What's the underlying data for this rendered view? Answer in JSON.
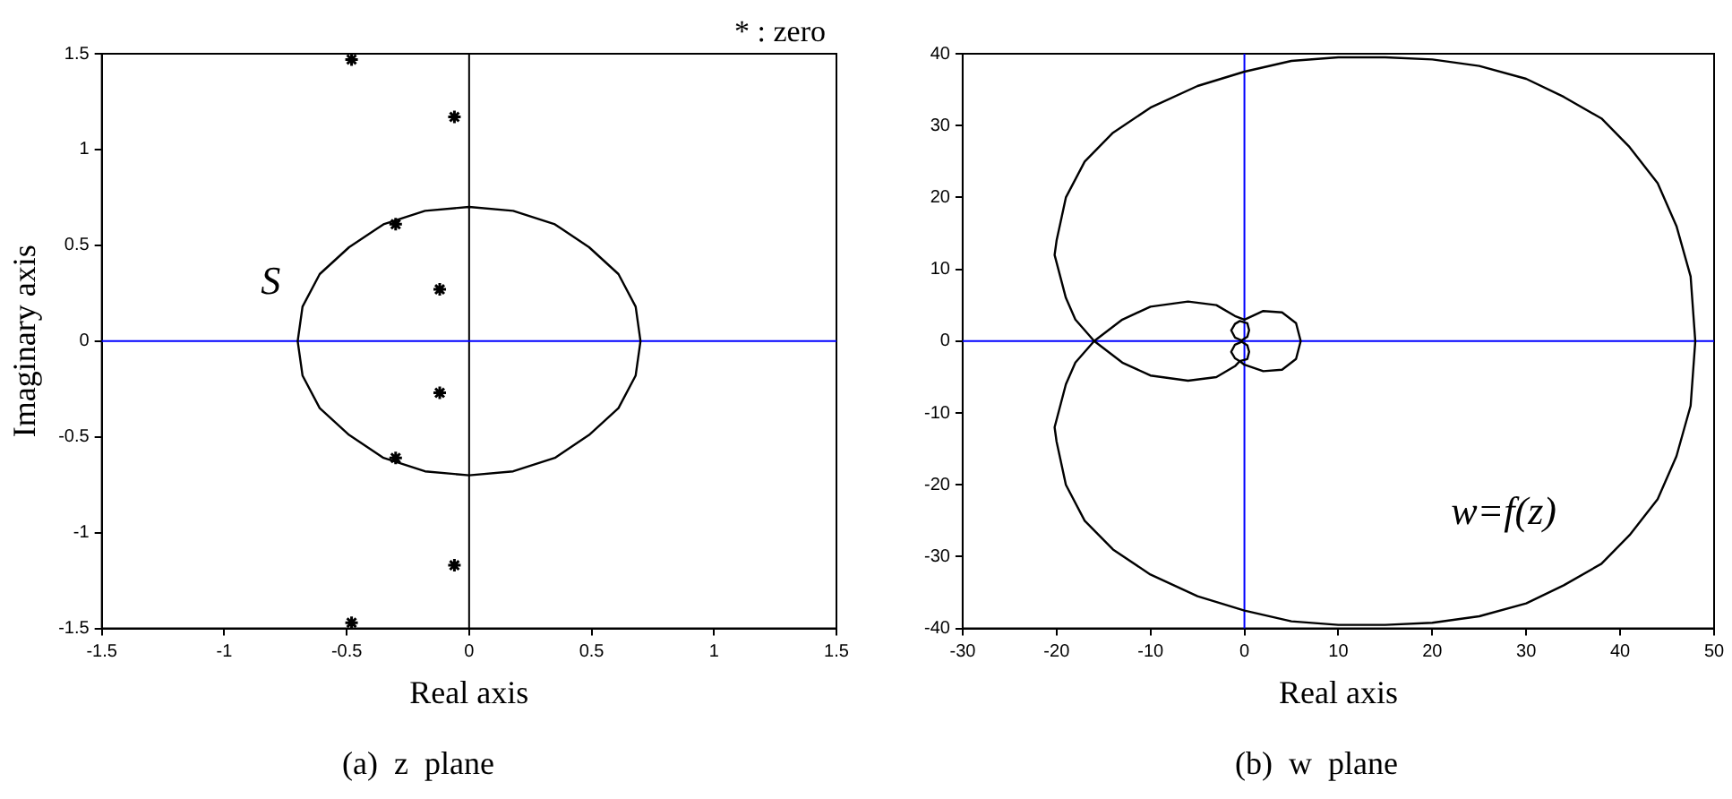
{
  "chart_data": [
    {
      "type": "scatter",
      "title": "(a)  z  plane",
      "xlabel": "Real axis",
      "ylabel": "Imaginary axis",
      "xlim": [
        -1.5,
        1.5
      ],
      "ylim": [
        -1.5,
        1.5
      ],
      "xticks": [
        -1.5,
        -1,
        -0.5,
        0,
        0.5,
        1,
        1.5
      ],
      "yticks": [
        -1.5,
        -1,
        -0.5,
        0,
        0.5,
        1,
        1.5
      ],
      "grid": false,
      "legend": false,
      "series": [
        {
          "marker": "cross",
          "color": "#000000",
          "x": [
            -0.48,
            -0.06,
            -0.3,
            -0.12,
            -0.12,
            -0.3,
            -0.06,
            -0.48
          ],
          "values": [
            1.47,
            1.17,
            0.61,
            0.27,
            -0.27,
            -0.61,
            -1.17,
            -1.47
          ]
        }
      ],
      "ref_lines": [
        {
          "axis": "x",
          "value": 0,
          "color": "#000000"
        },
        {
          "axis": "y",
          "value": 0,
          "color": "#0000ff"
        }
      ],
      "annotations": [
        "* : zero",
        "S"
      ]
    },
    {
      "type": "line",
      "title": "(b)  w  plane",
      "xlabel": "Real axis",
      "xlim": [
        -30,
        50
      ],
      "ylim": [
        -40,
        40
      ],
      "xticks": [
        -30,
        -20,
        -10,
        0,
        10,
        20,
        30,
        40,
        50
      ],
      "yticks": [
        -40,
        -30,
        -20,
        -10,
        0,
        10,
        20,
        30,
        40
      ],
      "grid": false,
      "legend": false,
      "ref_lines": [
        {
          "axis": "x",
          "value": 0,
          "color": "#0000ff"
        },
        {
          "axis": "y",
          "value": 0,
          "color": "#0000ff"
        }
      ],
      "annotations": [
        "w=f(z)"
      ]
    }
  ]
}
